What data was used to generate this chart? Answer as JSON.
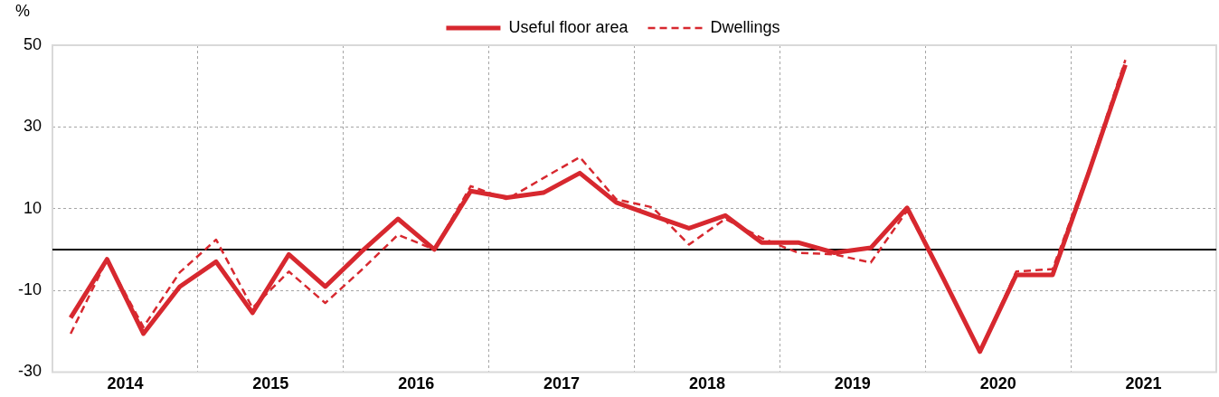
{
  "chart_data": {
    "type": "line",
    "ylabel": "%",
    "legend": "top",
    "grid": true,
    "marker": "none",
    "x": [
      2014.125,
      2014.375,
      2014.625,
      2014.875,
      2015.125,
      2015.375,
      2015.625,
      2015.875,
      2016.125,
      2016.375,
      2016.625,
      2016.875,
      2017.125,
      2017.375,
      2017.625,
      2017.875,
      2018.125,
      2018.375,
      2018.625,
      2018.875,
      2019.125,
      2019.375,
      2019.625,
      2019.875,
      2020.125,
      2020.375,
      2020.625,
      2020.875,
      2021.125,
      2021.375
    ],
    "xlim": [
      2014,
      2022
    ],
    "xticks": [
      {
        "value": 2014,
        "label": null
      },
      {
        "value": 2014.5,
        "label": "2014"
      },
      {
        "value": 2015,
        "label": null
      },
      {
        "value": 2015.5,
        "label": "2015"
      },
      {
        "value": 2016,
        "label": null
      },
      {
        "value": 2016.5,
        "label": "2016"
      },
      {
        "value": 2017,
        "label": null
      },
      {
        "value": 2017.5,
        "label": "2017"
      },
      {
        "value": 2018,
        "label": null
      },
      {
        "value": 2018.5,
        "label": "2018"
      },
      {
        "value": 2019,
        "label": null
      },
      {
        "value": 2019.5,
        "label": "2019"
      },
      {
        "value": 2020,
        "label": null
      },
      {
        "value": 2020.5,
        "label": "2020"
      },
      {
        "value": 2021,
        "label": null
      },
      {
        "value": 2021.5,
        "label": "2021"
      },
      {
        "value": 2022,
        "label": null
      }
    ],
    "ylim": [
      -30,
      50
    ],
    "yticks": [
      -30,
      -10,
      10,
      30,
      50
    ],
    "ref_lines": [
      {
        "axis": "y",
        "value": 0,
        "color": "#000000"
      }
    ],
    "series": [
      {
        "name": "Useful floor area",
        "color": "#d7282f",
        "line_style": "solid",
        "values": [
          -16.7,
          -2.4,
          -20.6,
          -9.1,
          -3,
          -15.5,
          -1.2,
          -9.1,
          -0.5,
          7.5,
          0,
          14.3,
          12.7,
          13.9,
          18.7,
          11.5,
          8.3,
          5.2,
          8.3,
          1.7,
          1.7,
          -0.8,
          0.4,
          10.2,
          -7.2,
          -25,
          -6.2,
          -6.2,
          19,
          45.2
        ]
      },
      {
        "name": "Dwellings",
        "color": "#d7282f",
        "line_style": "dashed",
        "values": [
          -20.6,
          -2.5,
          -19,
          -5.6,
          2.4,
          -14.3,
          -5.4,
          -13.1,
          -5,
          3.6,
          0,
          15.5,
          12.3,
          17.5,
          22.6,
          12.3,
          10.3,
          1.2,
          7.5,
          2.8,
          -0.8,
          -1.2,
          -3.2,
          9.5,
          -7,
          -25,
          -5.4,
          -4.8,
          19.5,
          46.4
        ]
      }
    ]
  }
}
